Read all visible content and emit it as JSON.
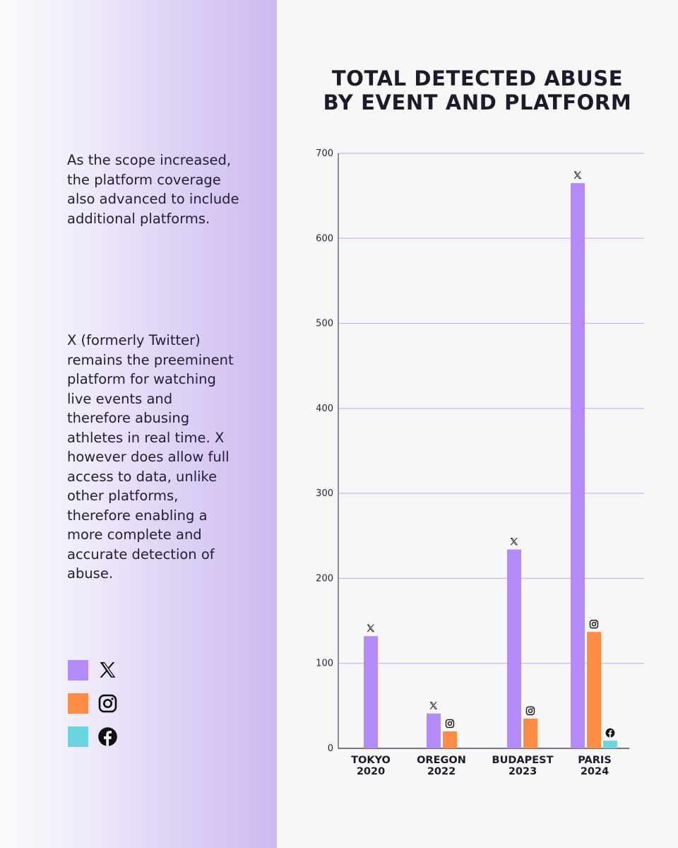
{
  "sidebar": {
    "paragraph1": "As the scope increased, the platform coverage also advanced to include additional platforms.",
    "paragraph2": "X (formerly Twitter) remains the preeminent platform for watching live events and therefore abusing athletes in real time. X however does allow full access to data, unlike other platforms, therefore enabling a more complete and accurate detection of abuse."
  },
  "legend": [
    {
      "platform": "x",
      "icon": "x-logo-icon",
      "color": "#b38bf9"
    },
    {
      "platform": "instagram",
      "icon": "instagram-icon",
      "color": "#ff8c45"
    },
    {
      "platform": "facebook",
      "icon": "facebook-icon",
      "color": "#6bd6df"
    }
  ],
  "colors": {
    "x": "#b38bf9",
    "instagram": "#ff8c45",
    "facebook": "#6bd6df",
    "gridline": "#c9a6ee"
  },
  "chart_data": {
    "type": "bar",
    "title": "TOTAL DETECTED ABUSE BY EVENT AND PLATFORM",
    "xlabel": "",
    "ylabel": "",
    "ylim": [
      0,
      700
    ],
    "yticks": [
      0,
      100,
      200,
      300,
      400,
      500,
      600,
      700
    ],
    "grid": true,
    "categories": [
      [
        "TOKYO",
        "2020"
      ],
      [
        "OREGON",
        "2022"
      ],
      [
        "BUDAPEST",
        "2023"
      ],
      [
        "PARIS",
        "2024"
      ]
    ],
    "series": [
      {
        "name": "X",
        "icon": "x-logo-icon",
        "color": "#b38bf9",
        "values": [
          132,
          41,
          234,
          665
        ]
      },
      {
        "name": "Instagram",
        "icon": "instagram-icon",
        "color": "#ff8c45",
        "values": [
          null,
          20,
          35,
          137
        ]
      },
      {
        "name": "Facebook",
        "icon": "facebook-icon",
        "color": "#6bd6df",
        "values": [
          null,
          null,
          null,
          9
        ]
      }
    ]
  }
}
